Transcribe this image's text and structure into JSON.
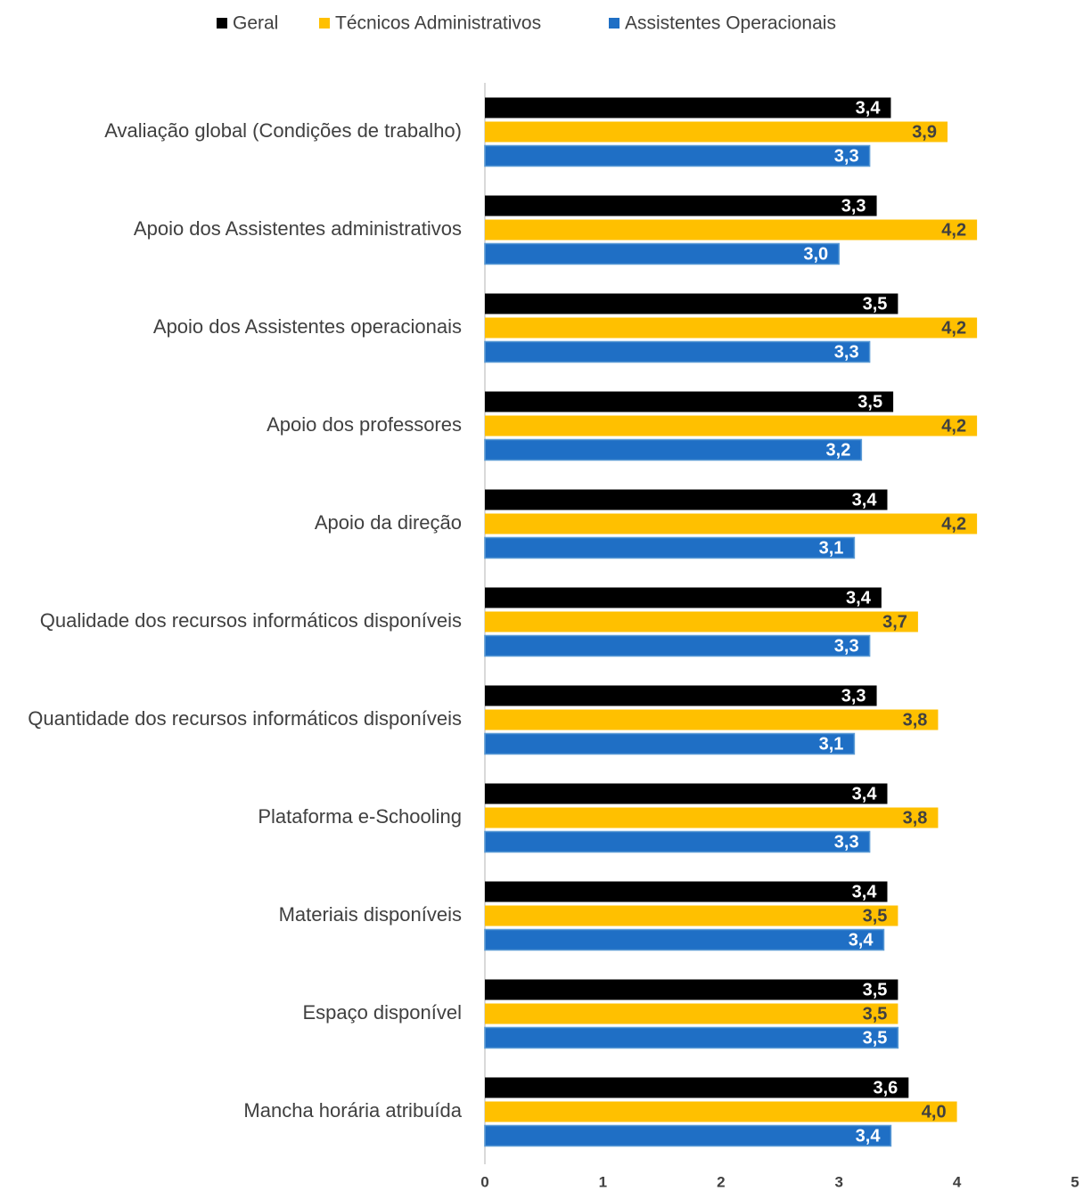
{
  "chart_data": {
    "type": "hbar",
    "categories": [
      "Avaliação global (Condições de trabalho)",
      "Apoio dos Assistentes administrativos",
      "Apoio dos Assistentes operacionais",
      "Apoio dos professores",
      "Apoio da direção",
      "Qualidade dos recursos informáticos disponíveis",
      "Quantidade dos recursos informáticos disponíveis",
      "Plataforma e-Schooling",
      "Materiais disponíveis",
      "Espaço disponível",
      "Mancha horária atribuída"
    ],
    "series": [
      {
        "name": "Geral",
        "color": "#000000",
        "label_color": "#ffffff",
        "values": [
          3.44,
          3.32,
          3.5,
          3.46,
          3.41,
          3.36,
          3.32,
          3.41,
          3.41,
          3.5,
          3.59
        ],
        "value_labels": [
          "3,4",
          "3,3",
          "3,5",
          "3,5",
          "3,4",
          "3,4",
          "3,3",
          "3,4",
          "3,4",
          "3,5",
          "3,6"
        ]
      },
      {
        "name": "Técnicos Administrativos",
        "color": "#ffc000",
        "label_color": "#404040",
        "values": [
          3.92,
          4.17,
          4.17,
          4.17,
          4.17,
          3.67,
          3.84,
          3.84,
          3.5,
          3.5,
          4.0
        ],
        "value_labels": [
          "3,9",
          "4,2",
          "4,2",
          "4,2",
          "4,2",
          "3,7",
          "3,8",
          "3,8",
          "3,5",
          "3,5",
          "4,0"
        ]
      },
      {
        "name": "Assistentes Operacionais",
        "color": "#1f6fc5",
        "label_color": "#ffffff",
        "values": [
          3.26,
          3.0,
          3.26,
          3.19,
          3.13,
          3.26,
          3.13,
          3.26,
          3.38,
          3.5,
          3.44
        ],
        "value_labels": [
          "3,3",
          "3,0",
          "3,3",
          "3,2",
          "3,1",
          "3,3",
          "3,1",
          "3,3",
          "3,4",
          "3,5",
          "3,4"
        ]
      }
    ],
    "xlim": [
      0,
      5
    ],
    "xticks": [
      0,
      1,
      2,
      3,
      4,
      5
    ],
    "grid": false,
    "legend": "top"
  }
}
